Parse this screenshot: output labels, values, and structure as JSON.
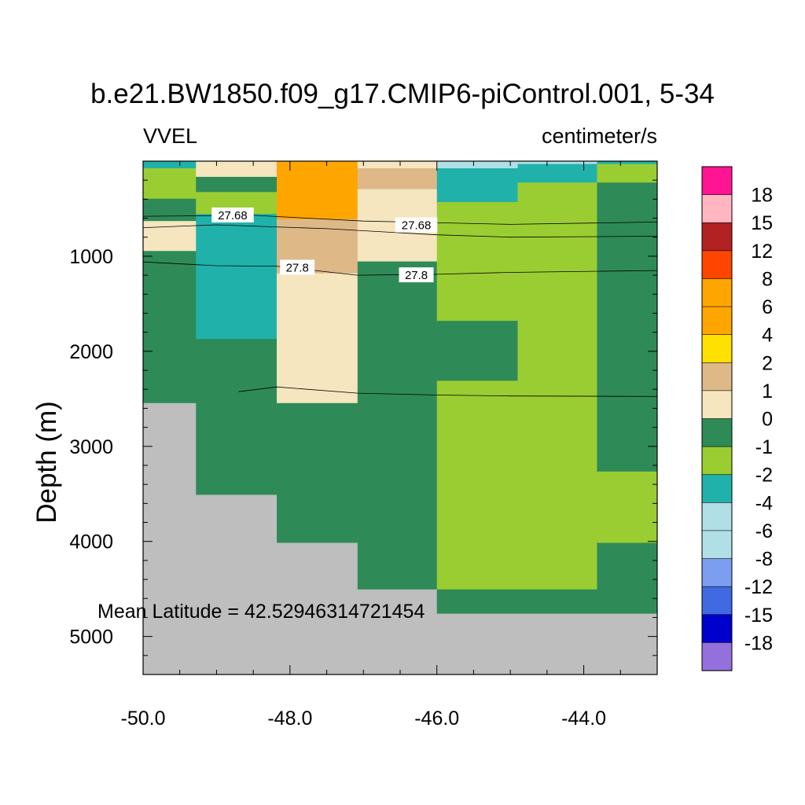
{
  "chart_data": {
    "type": "heatmap",
    "title": "b.e21.BW1850.f09_g17.CMIP6-piControl.001, 5-34",
    "left_label": "VVEL",
    "right_label": "centimeter/s",
    "ylabel": "Depth (m)",
    "xlabel": "",
    "annotation": "Mean Latitude = 42.52946314721454",
    "xlim": [
      -50.0,
      -43.0
    ],
    "ylim": [
      5400,
      0
    ],
    "x_ticks": [
      "-50.0",
      "-48.0",
      "-46.0",
      "-44.0"
    ],
    "y_ticks": [
      "1000",
      "2000",
      "3000",
      "4000",
      "5000"
    ],
    "colorbar": {
      "labels": [
        "18",
        "15",
        "12",
        "8",
        "6",
        "4",
        "2",
        "1",
        "0",
        "-1",
        "-2",
        "-4",
        "-6",
        "-8",
        "-12",
        "-15",
        "-18"
      ],
      "colors": [
        "#ff1493",
        "#ffb6c1",
        "#b22222",
        "#ff4500",
        "#ffa500",
        "#ffa500",
        "#ffe000",
        "#deb887",
        "#f5e6bf",
        "#2e8b57",
        "#9acd32",
        "#20b2aa",
        "#b0e0e6",
        "#b0e0e6",
        "#7b9ef0",
        "#4169e1",
        "#0000cd",
        "#9370db"
      ]
    },
    "cells": [
      {
        "x": [
          -50.0,
          -49.28
        ],
        "y": [
          0,
          75
        ],
        "v": "-2"
      },
      {
        "x": [
          -50.0,
          -49.28
        ],
        "y": [
          75,
          395
        ],
        "v": "-1"
      },
      {
        "x": [
          -50.0,
          -49.28
        ],
        "y": [
          395,
          630
        ],
        "v": "0"
      },
      {
        "x": [
          -50.0,
          -49.28
        ],
        "y": [
          630,
          945
        ],
        "v": "1"
      },
      {
        "x": [
          -50.0,
          -49.28
        ],
        "y": [
          945,
          2545
        ],
        "v": "0"
      },
      {
        "x": [
          -50.0,
          -49.28
        ],
        "y": [
          2545,
          5400
        ],
        "v": "land"
      },
      {
        "x": [
          -49.28,
          -48.18
        ],
        "y": [
          0,
          165
        ],
        "v": "1"
      },
      {
        "x": [
          -49.28,
          -48.18
        ],
        "y": [
          165,
          325
        ],
        "v": "0"
      },
      {
        "x": [
          -49.28,
          -48.18
        ],
        "y": [
          325,
          555
        ],
        "v": "-1"
      },
      {
        "x": [
          -49.28,
          -48.18
        ],
        "y": [
          555,
          1870
        ],
        "v": "-2"
      },
      {
        "x": [
          -49.28,
          -48.18
        ],
        "y": [
          1870,
          3510
        ],
        "v": "0"
      },
      {
        "x": [
          -49.28,
          -48.18
        ],
        "y": [
          3510,
          5400
        ],
        "v": "land"
      },
      {
        "x": [
          -48.18,
          -47.08
        ],
        "y": [
          0,
          610
        ],
        "v": "6"
      },
      {
        "x": [
          -48.18,
          -47.08
        ],
        "y": [
          610,
          1180
        ],
        "v": "2"
      },
      {
        "x": [
          -48.18,
          -47.08
        ],
        "y": [
          1180,
          2545
        ],
        "v": "1"
      },
      {
        "x": [
          -48.18,
          -47.08
        ],
        "y": [
          2545,
          4015
        ],
        "v": "0"
      },
      {
        "x": [
          -48.18,
          -47.08
        ],
        "y": [
          4015,
          5400
        ],
        "v": "land"
      },
      {
        "x": [
          -47.08,
          -46.0
        ],
        "y": [
          0,
          75
        ],
        "v": "1"
      },
      {
        "x": [
          -47.08,
          -46.0
        ],
        "y": [
          75,
          295
        ],
        "v": "2"
      },
      {
        "x": [
          -47.08,
          -46.0
        ],
        "y": [
          295,
          1055
        ],
        "v": "1"
      },
      {
        "x": [
          -47.08,
          -46.0
        ],
        "y": [
          1055,
          4505
        ],
        "v": "0"
      },
      {
        "x": [
          -47.08,
          -46.0
        ],
        "y": [
          4505,
          5400
        ],
        "v": "land"
      },
      {
        "x": [
          -46.0,
          -44.9
        ],
        "y": [
          0,
          75
        ],
        "v": "-4"
      },
      {
        "x": [
          -46.0,
          -44.9
        ],
        "y": [
          75,
          430
        ],
        "v": "-2"
      },
      {
        "x": [
          -46.0,
          -44.9
        ],
        "y": [
          430,
          1680
        ],
        "v": "-1"
      },
      {
        "x": [
          -46.0,
          -44.9
        ],
        "y": [
          1680,
          2310
        ],
        "v": "0"
      },
      {
        "x": [
          -46.0,
          -44.9
        ],
        "y": [
          2310,
          4505
        ],
        "v": "-1"
      },
      {
        "x": [
          -46.0,
          -44.9
        ],
        "y": [
          4505,
          4760
        ],
        "v": "0"
      },
      {
        "x": [
          -46.0,
          -44.9
        ],
        "y": [
          4760,
          5400
        ],
        "v": "land"
      },
      {
        "x": [
          -44.9,
          -43.82
        ],
        "y": [
          0,
          30
        ],
        "v": "-4"
      },
      {
        "x": [
          -44.9,
          -43.82
        ],
        "y": [
          30,
          225
        ],
        "v": "-2"
      },
      {
        "x": [
          -44.9,
          -43.82
        ],
        "y": [
          225,
          4505
        ],
        "v": "-1"
      },
      {
        "x": [
          -44.9,
          -43.82
        ],
        "y": [
          4505,
          4760
        ],
        "v": "0"
      },
      {
        "x": [
          -44.9,
          -43.82
        ],
        "y": [
          4760,
          5400
        ],
        "v": "land"
      },
      {
        "x": [
          -43.82,
          -43.0
        ],
        "y": [
          0,
          30
        ],
        "v": "-2"
      },
      {
        "x": [
          -43.82,
          -43.0
        ],
        "y": [
          30,
          225
        ],
        "v": "-1"
      },
      {
        "x": [
          -43.82,
          -43.0
        ],
        "y": [
          225,
          3265
        ],
        "v": "0"
      },
      {
        "x": [
          -43.82,
          -43.0
        ],
        "y": [
          3265,
          4015
        ],
        "v": "-1"
      },
      {
        "x": [
          -43.82,
          -43.0
        ],
        "y": [
          4015,
          4760
        ],
        "v": "0"
      },
      {
        "x": [
          -43.82,
          -43.0
        ],
        "y": [
          4760,
          5400
        ],
        "v": "land"
      }
    ],
    "land_color": "#bebebe",
    "contours": [
      {
        "points": [
          [
            -50.0,
            580
          ],
          [
            -48.5,
            570
          ],
          [
            -47.0,
            630
          ],
          [
            -45.0,
            665
          ],
          [
            -43.0,
            640
          ]
        ]
      },
      {
        "label": "27.68",
        "label_at": [
          [
            -48.78,
            570
          ],
          [
            -46.28,
            675
          ]
        ],
        "points": [
          [
            -50.0,
            700
          ],
          [
            -49.0,
            670
          ],
          [
            -47.5,
            710
          ],
          [
            -46.0,
            775
          ],
          [
            -45.0,
            800
          ],
          [
            -43.0,
            790
          ]
        ]
      },
      {
        "label": "27.8",
        "label_at": [
          [
            -47.9,
            1120
          ],
          [
            -46.28,
            1200
          ]
        ],
        "points": [
          [
            -50.0,
            1060
          ],
          [
            -49.0,
            1100
          ],
          [
            -48.18,
            1105
          ],
          [
            -47.08,
            1200
          ],
          [
            -46.0,
            1190
          ],
          [
            -45.0,
            1170
          ],
          [
            -43.0,
            1150
          ]
        ]
      },
      {
        "points": [
          [
            -48.7,
            2425
          ],
          [
            -48.18,
            2375
          ],
          [
            -47.08,
            2440
          ],
          [
            -46.0,
            2460
          ],
          [
            -45.0,
            2470
          ],
          [
            -43.0,
            2475
          ]
        ]
      }
    ]
  }
}
